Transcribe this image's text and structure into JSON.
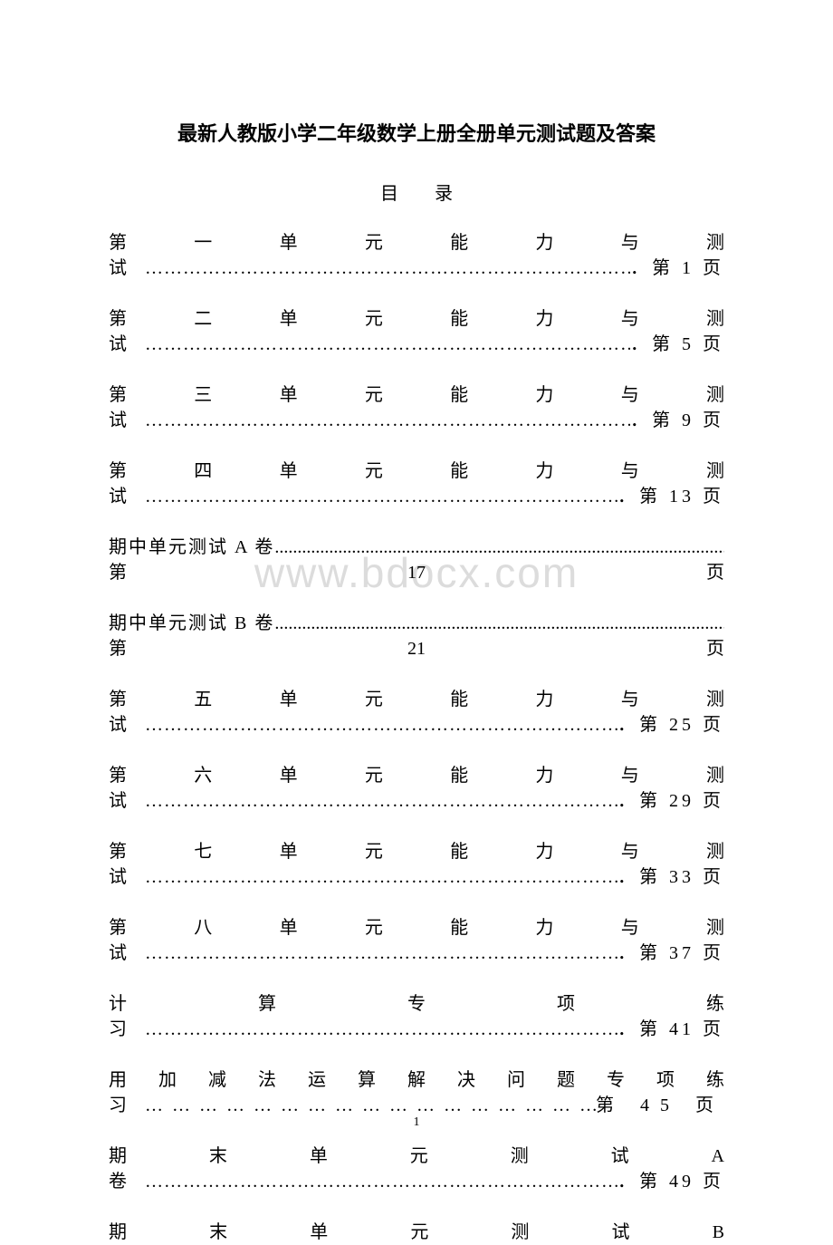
{
  "title": "最新人教版小学二年级数学上册全册单元测试题及答案",
  "toc_header": "目录",
  "watermark": "www.bdocx.com",
  "footer_page": "1",
  "entries": [
    {
      "type": "two-line",
      "line1": "第一单元能力与测",
      "prefix": "试",
      "dots_char": "…",
      "page": "．第 1 页"
    },
    {
      "type": "two-line",
      "line1": "第二单元能力与测",
      "prefix": "试",
      "dots_char": "…",
      "page": "．第 5 页"
    },
    {
      "type": "two-line",
      "line1": "第三单元能力与测",
      "prefix": "试",
      "dots_char": "…",
      "page": "．第 9 页"
    },
    {
      "type": "two-line",
      "line1": "第四单元能力与测",
      "prefix": "试",
      "dots_char": "…",
      "page": "．第 13 页"
    },
    {
      "type": "split",
      "top": "期中单元测试 A 卷",
      "top_dots": ".",
      "bottom": "第17页"
    },
    {
      "type": "split",
      "top": "期中单元测试 B 卷",
      "top_dots": ".",
      "bottom": "第21页"
    },
    {
      "type": "two-line",
      "line1": "第五单元能力与测",
      "prefix": "试",
      "dots_char": "…",
      "page": "．第 25 页"
    },
    {
      "type": "two-line",
      "line1": "第六单元能力与测",
      "prefix": "试",
      "dots_char": "…",
      "page": "．第 29 页"
    },
    {
      "type": "two-line",
      "line1": "第七单元能力与测",
      "prefix": "试",
      "dots_char": "…",
      "page": "．第 33 页"
    },
    {
      "type": "two-line",
      "line1": "第八单元能力与测",
      "prefix": "试",
      "dots_char": "…",
      "page": "．第 37 页"
    },
    {
      "type": "two-line",
      "line1": "计算专项练",
      "prefix": "习",
      "dots_char": "…",
      "page": "．第 41 页"
    },
    {
      "type": "two-line-wide",
      "line1": "用加减法运算解决问题专项练",
      "prefix": "习",
      "dots_char": "…",
      "page": "第 45 页"
    },
    {
      "type": "two-line",
      "line1": "期末单元测试A",
      "prefix": "卷",
      "dots_char": "…",
      "page": "．第 49 页"
    },
    {
      "type": "one-line-just",
      "text": "期末单元测试B"
    }
  ]
}
